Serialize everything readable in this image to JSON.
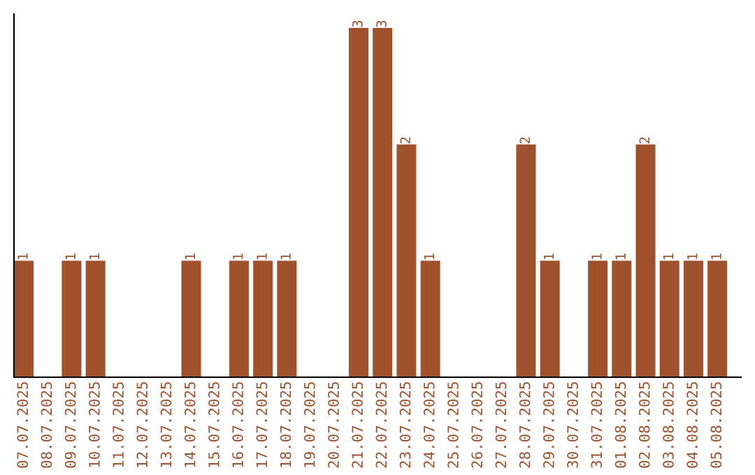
{
  "chart_data": {
    "type": "bar",
    "categories": [
      "07.07.2025",
      "08.07.2025",
      "09.07.2025",
      "10.07.2025",
      "11.07.2025",
      "12.07.2025",
      "13.07.2025",
      "14.07.2025",
      "15.07.2025",
      "16.07.2025",
      "17.07.2025",
      "18.07.2025",
      "19.07.2025",
      "20.07.2025",
      "21.07.2025",
      "22.07.2025",
      "23.07.2025",
      "24.07.2025",
      "25.07.2025",
      "26.07.2025",
      "27.07.2025",
      "28.07.2025",
      "29.07.2025",
      "30.07.2025",
      "31.07.2025",
      "01.08.2025",
      "02.08.2025",
      "03.08.2025",
      "04.08.2025",
      "05.08.2025"
    ],
    "values": [
      1,
      0,
      1,
      1,
      0,
      0,
      0,
      1,
      0,
      1,
      1,
      1,
      0,
      0,
      3,
      3,
      2,
      1,
      0,
      0,
      0,
      2,
      1,
      0,
      1,
      1,
      2,
      1,
      1,
      1
    ],
    "value_labels": [
      "1",
      null,
      "1",
      "1",
      null,
      null,
      null,
      "1",
      null,
      "1",
      "1",
      "1",
      null,
      null,
      "3",
      "3",
      "2",
      "1",
      null,
      null,
      null,
      "2",
      "1",
      null,
      "1",
      "1",
      "2",
      "1",
      "1",
      "1"
    ],
    "color": "#a0522d",
    "grid": false,
    "legend": false
  }
}
